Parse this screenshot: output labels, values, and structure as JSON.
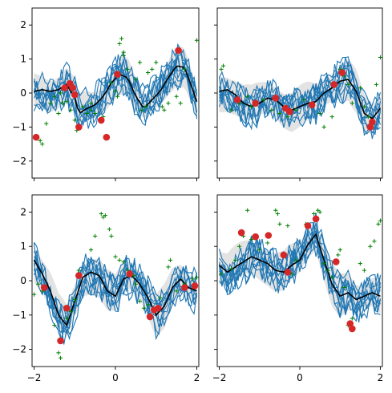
{
  "chart_data": [
    {
      "type": "line",
      "panel": "top-left",
      "xlim": [
        -2.05,
        2.05
      ],
      "ylim": [
        -2.5,
        2.5
      ],
      "xticks": [
        -2,
        0,
        2
      ],
      "yticks": [
        -2,
        -1,
        0,
        1,
        2
      ],
      "xtick_labels": [
        "",
        "",
        ""
      ],
      "ytick_labels": [
        "−2",
        "−1",
        "0",
        "1",
        "2"
      ],
      "mean": [
        [
          -2,
          0.05
        ],
        [
          -1.8,
          0.1
        ],
        [
          -1.6,
          0.05
        ],
        [
          -1.4,
          0.1
        ],
        [
          -1.2,
          0.25
        ],
        [
          -1.0,
          -0.15
        ],
        [
          -0.9,
          -0.6
        ],
        [
          -0.7,
          -0.45
        ],
        [
          -0.5,
          -0.35
        ],
        [
          -0.3,
          -0.1
        ],
        [
          -0.1,
          0.3
        ],
        [
          0.1,
          0.55
        ],
        [
          0.3,
          0.45
        ],
        [
          0.5,
          -0.1
        ],
        [
          0.7,
          -0.45
        ],
        [
          0.9,
          -0.2
        ],
        [
          1.1,
          0.05
        ],
        [
          1.3,
          0.45
        ],
        [
          1.5,
          0.8
        ],
        [
          1.7,
          0.75
        ],
        [
          1.9,
          0.1
        ],
        [
          2.0,
          -0.25
        ]
      ],
      "band_halfwidth": 0.45,
      "sample_count": 10,
      "points": [
        [
          -1.95,
          -1.3
        ],
        [
          -1.25,
          0.15
        ],
        [
          -1.12,
          0.28
        ],
        [
          -1.05,
          0.15
        ],
        [
          -1.0,
          -0.05
        ],
        [
          -0.9,
          -1.0
        ],
        [
          -0.35,
          -0.8
        ],
        [
          -0.22,
          -1.3
        ],
        [
          0.05,
          0.55
        ],
        [
          1.55,
          1.25
        ]
      ],
      "crosses": [
        [
          -1.85,
          -1.4
        ],
        [
          -1.8,
          -1.5
        ],
        [
          -1.7,
          -0.9
        ],
        [
          -1.6,
          -0.3
        ],
        [
          -1.5,
          -0.1
        ],
        [
          -1.35,
          0.0
        ],
        [
          -1.3,
          -0.3
        ],
        [
          -1.2,
          -0.25
        ],
        [
          -1.1,
          -0.5
        ],
        [
          -1.0,
          -0.8
        ],
        [
          -0.95,
          -1.1
        ],
        [
          -0.8,
          -0.4
        ],
        [
          -0.7,
          -0.6
        ],
        [
          -0.6,
          -0.5
        ],
        [
          -0.5,
          -0.6
        ],
        [
          -0.3,
          -0.7
        ],
        [
          -0.1,
          0.3
        ],
        [
          0.0,
          0.05
        ],
        [
          0.05,
          -0.1
        ],
        [
          0.1,
          1.45
        ],
        [
          0.15,
          1.6
        ],
        [
          0.2,
          1.1
        ],
        [
          0.3,
          0.7
        ],
        [
          0.5,
          0.4
        ],
        [
          0.6,
          0.9
        ],
        [
          0.65,
          -0.5
        ],
        [
          0.75,
          -0.4
        ],
        [
          0.8,
          0.6
        ],
        [
          0.9,
          0.7
        ],
        [
          1.0,
          0.9
        ],
        [
          1.15,
          -0.4
        ],
        [
          1.2,
          -0.5
        ],
        [
          1.3,
          -0.3
        ],
        [
          1.5,
          -0.1
        ],
        [
          1.6,
          -0.3
        ],
        [
          1.7,
          0.7
        ],
        [
          2.0,
          1.55
        ],
        [
          0.2,
          1.2
        ],
        [
          -0.6,
          -0.3
        ],
        [
          -1.4,
          -0.6
        ]
      ]
    },
    {
      "type": "line",
      "panel": "top-right",
      "xlim": [
        -2.05,
        2.05
      ],
      "ylim": [
        -2.5,
        2.5
      ],
      "xticks": [
        -2,
        0,
        2
      ],
      "yticks": [
        -2,
        -1,
        0,
        1,
        2
      ],
      "xtick_labels": [
        "",
        "",
        ""
      ],
      "ytick_labels": [
        "",
        "",
        "",
        "",
        ""
      ],
      "mean": [
        [
          -2,
          0.05
        ],
        [
          -1.8,
          0.1
        ],
        [
          -1.6,
          -0.05
        ],
        [
          -1.4,
          -0.3
        ],
        [
          -1.2,
          -0.4
        ],
        [
          -1.0,
          -0.3
        ],
        [
          -0.8,
          -0.15
        ],
        [
          -0.6,
          -0.2
        ],
        [
          -0.4,
          -0.4
        ],
        [
          -0.2,
          -0.5
        ],
        [
          0.0,
          -0.4
        ],
        [
          0.2,
          -0.3
        ],
        [
          0.4,
          -0.25
        ],
        [
          0.6,
          0.0
        ],
        [
          0.8,
          0.15
        ],
        [
          1.0,
          0.35
        ],
        [
          1.2,
          0.4
        ],
        [
          1.4,
          0.05
        ],
        [
          1.6,
          -0.6
        ],
        [
          1.8,
          -0.75
        ],
        [
          2.0,
          -0.45
        ]
      ],
      "band_halfwidth": 0.5,
      "sample_count": 10,
      "points": [
        [
          -1.55,
          -0.2
        ],
        [
          -1.1,
          -0.3
        ],
        [
          -0.6,
          -0.15
        ],
        [
          -0.35,
          -0.45
        ],
        [
          -0.25,
          -0.55
        ],
        [
          0.3,
          -0.35
        ],
        [
          0.85,
          0.25
        ],
        [
          1.05,
          0.6
        ],
        [
          1.75,
          -1.0
        ],
        [
          1.8,
          -0.85
        ]
      ],
      "crosses": [
        [
          -1.95,
          0.7
        ],
        [
          -1.9,
          0.8
        ],
        [
          -1.7,
          -0.5
        ],
        [
          -1.5,
          -0.3
        ],
        [
          -1.3,
          -0.1
        ],
        [
          -1.2,
          -0.4
        ],
        [
          -0.9,
          -0.2
        ],
        [
          -0.7,
          -0.5
        ],
        [
          -0.5,
          -0.6
        ],
        [
          -0.3,
          -0.7
        ],
        [
          -0.1,
          -0.5
        ],
        [
          0.1,
          -0.2
        ],
        [
          0.3,
          -0.4
        ],
        [
          0.5,
          -0.6
        ],
        [
          0.6,
          -1.0
        ],
        [
          0.8,
          -0.7
        ],
        [
          1.0,
          0.7
        ],
        [
          1.1,
          0.5
        ],
        [
          1.2,
          0.25
        ],
        [
          1.3,
          -0.3
        ],
        [
          1.5,
          0.15
        ],
        [
          1.6,
          -0.4
        ],
        [
          1.7,
          -0.7
        ],
        [
          1.8,
          -0.9
        ],
        [
          1.9,
          0.25
        ],
        [
          2.0,
          1.05
        ]
      ]
    },
    {
      "type": "line",
      "panel": "bottom-left",
      "xlim": [
        -2.05,
        2.05
      ],
      "ylim": [
        -2.5,
        2.5
      ],
      "xticks": [
        -2,
        0,
        2
      ],
      "yticks": [
        -2,
        -1,
        0,
        1,
        2
      ],
      "xtick_labels": [
        "−2",
        "0",
        "2"
      ],
      "ytick_labels": [
        "−2",
        "−1",
        "0",
        "1",
        "2"
      ],
      "mean": [
        [
          -2,
          0.6
        ],
        [
          -1.8,
          0.2
        ],
        [
          -1.6,
          -0.3
        ],
        [
          -1.4,
          -1.0
        ],
        [
          -1.2,
          -1.3
        ],
        [
          -1.0,
          -0.6
        ],
        [
          -0.8,
          0.1
        ],
        [
          -0.6,
          0.25
        ],
        [
          -0.4,
          0.15
        ],
        [
          -0.2,
          -0.3
        ],
        [
          0.0,
          -0.45
        ],
        [
          0.2,
          0.05
        ],
        [
          0.4,
          0.15
        ],
        [
          0.6,
          -0.1
        ],
        [
          0.8,
          -0.5
        ],
        [
          1.0,
          -1.0
        ],
        [
          1.2,
          -0.75
        ],
        [
          1.4,
          -0.2
        ],
        [
          1.6,
          0.05
        ],
        [
          1.8,
          -0.2
        ],
        [
          2.0,
          -0.3
        ]
      ],
      "band_halfwidth": 0.5,
      "sample_count": 10,
      "points": [
        [
          -1.75,
          -0.2
        ],
        [
          -1.35,
          -1.75
        ],
        [
          -1.2,
          -0.8
        ],
        [
          -0.9,
          0.15
        ],
        [
          0.35,
          0.2
        ],
        [
          0.85,
          -1.05
        ],
        [
          0.95,
          -0.85
        ],
        [
          1.05,
          -0.8
        ],
        [
          1.7,
          -0.2
        ],
        [
          1.95,
          -0.15
        ]
      ],
      "crosses": [
        [
          -2.0,
          -0.4
        ],
        [
          -1.9,
          -0.1
        ],
        [
          -1.8,
          -0.3
        ],
        [
          -1.5,
          -1.3
        ],
        [
          -1.4,
          -2.1
        ],
        [
          -1.35,
          -2.25
        ],
        [
          -1.2,
          -1.1
        ],
        [
          -1.1,
          -0.9
        ],
        [
          -1.0,
          -0.55
        ],
        [
          -0.9,
          0.3
        ],
        [
          -0.6,
          0.9
        ],
        [
          -0.5,
          1.3
        ],
        [
          -0.35,
          1.95
        ],
        [
          -0.3,
          1.85
        ],
        [
          -0.25,
          1.9
        ],
        [
          -0.15,
          1.5
        ],
        [
          -0.1,
          1.3
        ],
        [
          0.0,
          0.7
        ],
        [
          0.1,
          0.6
        ],
        [
          0.2,
          0.55
        ],
        [
          0.3,
          0.3
        ],
        [
          0.45,
          0.15
        ],
        [
          0.5,
          -0.1
        ],
        [
          0.6,
          -0.6
        ],
        [
          0.7,
          -0.8
        ],
        [
          0.8,
          -0.7
        ],
        [
          1.1,
          -0.5
        ],
        [
          1.3,
          0.4
        ],
        [
          1.35,
          0.6
        ],
        [
          1.5,
          -0.3
        ],
        [
          1.7,
          -0.1
        ],
        [
          1.9,
          0.05
        ],
        [
          2.0,
          0.1
        ]
      ]
    },
    {
      "type": "line",
      "panel": "bottom-right",
      "xlim": [
        -2.05,
        2.05
      ],
      "ylim": [
        -2.5,
        2.5
      ],
      "xticks": [
        -2,
        0,
        2
      ],
      "yticks": [
        -2,
        -1,
        0,
        1,
        2
      ],
      "xtick_labels": [
        "−2",
        "0",
        "2"
      ],
      "ytick_labels": [
        "",
        "",
        "",
        "",
        ""
      ],
      "mean": [
        [
          -2,
          0.45
        ],
        [
          -1.8,
          0.25
        ],
        [
          -1.6,
          0.4
        ],
        [
          -1.4,
          0.55
        ],
        [
          -1.2,
          0.7
        ],
        [
          -1.0,
          0.6
        ],
        [
          -0.8,
          0.5
        ],
        [
          -0.6,
          0.3
        ],
        [
          -0.4,
          0.25
        ],
        [
          -0.2,
          0.45
        ],
        [
          0.0,
          0.6
        ],
        [
          0.2,
          1.05
        ],
        [
          0.4,
          1.35
        ],
        [
          0.6,
          0.6
        ],
        [
          0.8,
          -0.1
        ],
        [
          1.0,
          -0.45
        ],
        [
          1.2,
          -0.35
        ],
        [
          1.4,
          -0.55
        ],
        [
          1.6,
          -0.45
        ],
        [
          1.8,
          -0.35
        ],
        [
          2.0,
          -0.45
        ]
      ],
      "band_halfwidth": 0.5,
      "sample_count": 10,
      "points": [
        [
          -1.45,
          1.4
        ],
        [
          -1.1,
          1.28
        ],
        [
          -0.78,
          1.32
        ],
        [
          -0.4,
          0.75
        ],
        [
          -0.3,
          0.25
        ],
        [
          0.2,
          1.6
        ],
        [
          0.4,
          1.8
        ],
        [
          0.9,
          0.55
        ],
        [
          1.25,
          -1.25
        ],
        [
          1.3,
          -1.4
        ]
      ],
      "crosses": [
        [
          -1.95,
          0.2
        ],
        [
          -1.7,
          0.35
        ],
        [
          -1.6,
          0.6
        ],
        [
          -1.5,
          1.0
        ],
        [
          -1.4,
          1.3
        ],
        [
          -1.3,
          2.05
        ],
        [
          -1.2,
          1.2
        ],
        [
          -1.0,
          0.9
        ],
        [
          -0.8,
          1.1
        ],
        [
          -0.6,
          2.05
        ],
        [
          -0.55,
          1.95
        ],
        [
          -0.5,
          1.65
        ],
        [
          -0.3,
          1.6
        ],
        [
          -0.2,
          0.2
        ],
        [
          -0.1,
          0.6
        ],
        [
          0.15,
          1.65
        ],
        [
          0.35,
          1.95
        ],
        [
          0.45,
          2.05
        ],
        [
          0.5,
          2.0
        ],
        [
          0.6,
          0.5
        ],
        [
          0.7,
          0.3
        ],
        [
          0.8,
          0.1
        ],
        [
          0.95,
          0.75
        ],
        [
          1.0,
          0.9
        ],
        [
          1.1,
          -0.2
        ],
        [
          1.2,
          -1.3
        ],
        [
          1.3,
          -1.1
        ],
        [
          1.5,
          0.5
        ],
        [
          1.6,
          0.3
        ],
        [
          1.75,
          1.0
        ],
        [
          1.85,
          1.15
        ],
        [
          1.95,
          1.65
        ],
        [
          2.0,
          1.75
        ]
      ]
    }
  ]
}
